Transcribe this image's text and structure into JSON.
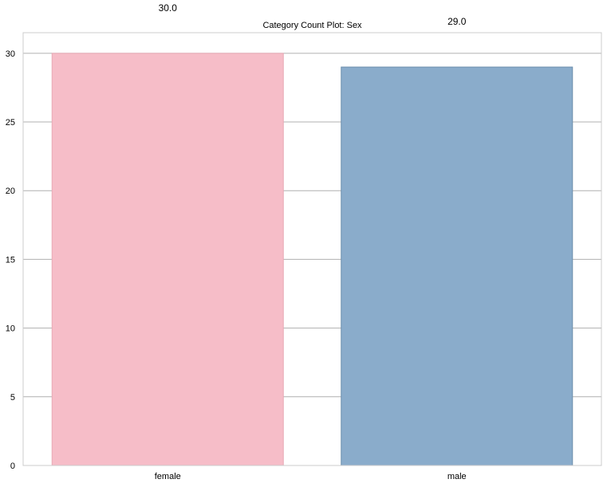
{
  "chart_data": {
    "type": "bar",
    "title": "Category Count Plot: Sex",
    "xlabel": "",
    "ylabel": "",
    "categories": [
      "female",
      "male"
    ],
    "values": [
      30,
      29
    ],
    "value_labels": [
      "30.0",
      "29.0"
    ],
    "colors": [
      "#f6bdc8",
      "#8aaccb"
    ],
    "edge_colors": [
      "#e8aab5",
      "#6f90ad"
    ],
    "ylim": [
      0,
      31.5
    ],
    "yticks": [
      0,
      5,
      10,
      15,
      20,
      25,
      30
    ],
    "grid": true,
    "legend": false
  }
}
